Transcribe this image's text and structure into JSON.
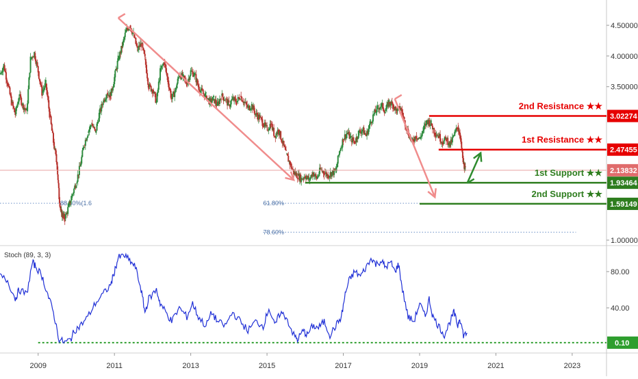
{
  "chart_data": {
    "type": "candlestick",
    "price_panel": {
      "y_ticks": [
        "4.50000",
        "4.00000",
        "3.50000",
        "1.00000"
      ],
      "y_tick_values": [
        4.5,
        4.0,
        3.5,
        1.0
      ],
      "x_years": [
        2008,
        2023.9
      ],
      "series_close": [
        [
          2008.0,
          3.7
        ],
        [
          2008.1,
          3.85
        ],
        [
          2008.2,
          3.55
        ],
        [
          2008.3,
          3.25
        ],
        [
          2008.4,
          3.05
        ],
        [
          2008.5,
          3.35
        ],
        [
          2008.6,
          3.2
        ],
        [
          2008.7,
          3.1
        ],
        [
          2008.8,
          3.95
        ],
        [
          2008.9,
          4.05
        ],
        [
          2009.0,
          3.75
        ],
        [
          2009.1,
          3.4
        ],
        [
          2009.2,
          3.55
        ],
        [
          2009.3,
          3.05
        ],
        [
          2009.4,
          2.6
        ],
        [
          2009.5,
          2.2
        ],
        [
          2009.55,
          1.7
        ],
        [
          2009.6,
          1.45
        ],
        [
          2009.65,
          1.4
        ],
        [
          2009.7,
          1.35
        ],
        [
          2009.8,
          1.55
        ],
        [
          2009.9,
          1.75
        ],
        [
          2010.0,
          1.95
        ],
        [
          2010.1,
          2.2
        ],
        [
          2010.2,
          2.55
        ],
        [
          2010.3,
          2.75
        ],
        [
          2010.4,
          2.9
        ],
        [
          2010.5,
          2.75
        ],
        [
          2010.6,
          3.05
        ],
        [
          2010.7,
          3.25
        ],
        [
          2010.8,
          3.4
        ],
        [
          2010.9,
          3.35
        ],
        [
          2011.0,
          3.65
        ],
        [
          2011.1,
          3.95
        ],
        [
          2011.2,
          4.15
        ],
        [
          2011.3,
          4.4
        ],
        [
          2011.4,
          4.5
        ],
        [
          2011.5,
          4.35
        ],
        [
          2011.6,
          4.1
        ],
        [
          2011.7,
          4.2
        ],
        [
          2011.8,
          3.95
        ],
        [
          2011.9,
          3.5
        ],
        [
          2012.0,
          3.45
        ],
        [
          2012.1,
          3.25
        ],
        [
          2012.2,
          3.75
        ],
        [
          2012.3,
          3.9
        ],
        [
          2012.4,
          3.6
        ],
        [
          2012.5,
          3.3
        ],
        [
          2012.6,
          3.45
        ],
        [
          2012.7,
          3.7
        ],
        [
          2012.8,
          3.65
        ],
        [
          2012.9,
          3.55
        ],
        [
          2013.0,
          3.75
        ],
        [
          2013.1,
          3.7
        ],
        [
          2013.2,
          3.5
        ],
        [
          2013.3,
          3.4
        ],
        [
          2013.4,
          3.35
        ],
        [
          2013.5,
          3.25
        ],
        [
          2013.6,
          3.3
        ],
        [
          2013.7,
          3.2
        ],
        [
          2013.8,
          3.35
        ],
        [
          2013.9,
          3.3
        ],
        [
          2014.0,
          3.2
        ],
        [
          2014.1,
          3.3
        ],
        [
          2014.2,
          3.25
        ],
        [
          2014.3,
          3.35
        ],
        [
          2014.4,
          3.25
        ],
        [
          2014.5,
          3.15
        ],
        [
          2014.6,
          3.2
        ],
        [
          2014.7,
          3.05
        ],
        [
          2014.8,
          3.0
        ],
        [
          2014.9,
          2.9
        ],
        [
          2015.0,
          2.8
        ],
        [
          2015.1,
          2.9
        ],
        [
          2015.2,
          2.7
        ],
        [
          2015.3,
          2.8
        ],
        [
          2015.4,
          2.6
        ],
        [
          2015.5,
          2.4
        ],
        [
          2015.6,
          2.25
        ],
        [
          2015.7,
          2.1
        ],
        [
          2015.8,
          2.05
        ],
        [
          2015.9,
          2.0
        ],
        [
          2016.0,
          2.05
        ],
        [
          2016.1,
          1.98
        ],
        [
          2016.2,
          2.1
        ],
        [
          2016.3,
          2.0
        ],
        [
          2016.4,
          2.15
        ],
        [
          2016.5,
          2.1
        ],
        [
          2016.6,
          2.05
        ],
        [
          2016.7,
          2.1
        ],
        [
          2016.8,
          2.12
        ],
        [
          2016.9,
          2.45
        ],
        [
          2017.0,
          2.65
        ],
        [
          2017.1,
          2.75
        ],
        [
          2017.2,
          2.65
        ],
        [
          2017.3,
          2.6
        ],
        [
          2017.4,
          2.75
        ],
        [
          2017.5,
          2.8
        ],
        [
          2017.6,
          2.7
        ],
        [
          2017.7,
          2.9
        ],
        [
          2017.8,
          3.05
        ],
        [
          2017.9,
          3.15
        ],
        [
          2018.0,
          3.2
        ],
        [
          2018.1,
          3.1
        ],
        [
          2018.2,
          3.25
        ],
        [
          2018.3,
          3.2
        ],
        [
          2018.4,
          3.1
        ],
        [
          2018.5,
          3.15
        ],
        [
          2018.6,
          2.95
        ],
        [
          2018.7,
          2.75
        ],
        [
          2018.8,
          2.6
        ],
        [
          2018.9,
          2.7
        ],
        [
          2019.0,
          2.65
        ],
        [
          2019.1,
          2.8
        ],
        [
          2019.2,
          2.95
        ],
        [
          2019.3,
          2.9
        ],
        [
          2019.4,
          2.75
        ],
        [
          2019.5,
          2.7
        ],
        [
          2019.6,
          2.6
        ],
        [
          2019.7,
          2.65
        ],
        [
          2019.8,
          2.55
        ],
        [
          2019.9,
          2.7
        ],
        [
          2020.0,
          2.85
        ],
        [
          2020.05,
          2.75
        ],
        [
          2020.1,
          2.5
        ],
        [
          2020.15,
          2.25
        ],
        [
          2020.2,
          2.14
        ]
      ],
      "levels": [
        {
          "label": "2nd Resistance ★★",
          "value": 3.02274,
          "tag": "3.02274",
          "color": "#e60000",
          "from": 2019.25
        },
        {
          "label": "1st Resistance ★★",
          "value": 2.47455,
          "tag": "2.47455",
          "color": "#e60000",
          "from": 2019.5
        },
        {
          "label": "1st Support ★★",
          "value": 1.93464,
          "tag": "1.93464",
          "color": "#2e7d1e",
          "from": 2016.0
        },
        {
          "label": "2nd Support ★★",
          "value": 1.59149,
          "tag": "1.59149",
          "color": "#2e7d1e",
          "from": 2019.0
        }
      ],
      "current_price": {
        "value": 2.13832,
        "tag": "2.13832",
        "color": "#e06c6c"
      },
      "fib_lines": [
        {
          "label": "88.60%(1.6",
          "value": 1.6,
          "from": 2008.0,
          "to": 2009.8
        },
        {
          "label": "61.80%",
          "value": 1.6,
          "from": 2014.9,
          "to": 2019.0
        },
        {
          "label": "78.60%",
          "value": 1.13,
          "from": 2014.9,
          "to": 2023.1
        }
      ],
      "arrows": [
        {
          "from": [
            2011.1,
            4.62
          ],
          "to": [
            2015.7,
            1.98
          ],
          "color": "#f08c8c"
        },
        {
          "from": [
            2018.35,
            3.3
          ],
          "to": [
            2019.4,
            1.7
          ],
          "color": "#f08c8c"
        },
        {
          "from": [
            2020.25,
            1.93
          ],
          "to": [
            2020.6,
            2.42
          ],
          "color": "#2e8b2e"
        }
      ]
    },
    "stoch_panel": {
      "title": "Stoch (89, 3, 3)",
      "y_ticks": [
        "80.00",
        "40.00"
      ],
      "y_tick_values": [
        80,
        40
      ],
      "level_line": {
        "value": 0.1,
        "tag": "0.10",
        "color": "#2e9e2e"
      },
      "series_k": [
        [
          2008.0,
          75
        ],
        [
          2008.2,
          70
        ],
        [
          2008.4,
          50
        ],
        [
          2008.5,
          60
        ],
        [
          2008.7,
          55
        ],
        [
          2008.85,
          90
        ],
        [
          2008.95,
          85
        ],
        [
          2009.1,
          75
        ],
        [
          2009.25,
          55
        ],
        [
          2009.4,
          35
        ],
        [
          2009.55,
          5
        ],
        [
          2009.7,
          2
        ],
        [
          2009.85,
          5
        ],
        [
          2009.95,
          15
        ],
        [
          2010.1,
          20
        ],
        [
          2010.3,
          30
        ],
        [
          2010.5,
          45
        ],
        [
          2010.7,
          55
        ],
        [
          2010.9,
          65
        ],
        [
          2011.0,
          80
        ],
        [
          2011.1,
          95
        ],
        [
          2011.25,
          98
        ],
        [
          2011.4,
          92
        ],
        [
          2011.55,
          85
        ],
        [
          2011.7,
          60
        ],
        [
          2011.8,
          35
        ],
        [
          2011.9,
          50
        ],
        [
          2012.1,
          60
        ],
        [
          2012.2,
          45
        ],
        [
          2012.35,
          35
        ],
        [
          2012.5,
          25
        ],
        [
          2012.7,
          40
        ],
        [
          2012.9,
          30
        ],
        [
          2013.05,
          45
        ],
        [
          2013.2,
          30
        ],
        [
          2013.4,
          20
        ],
        [
          2013.55,
          35
        ],
        [
          2013.7,
          25
        ],
        [
          2013.9,
          20
        ],
        [
          2014.1,
          35
        ],
        [
          2014.3,
          25
        ],
        [
          2014.5,
          15
        ],
        [
          2014.7,
          25
        ],
        [
          2014.9,
          20
        ],
        [
          2015.05,
          40
        ],
        [
          2015.2,
          20
        ],
        [
          2015.35,
          35
        ],
        [
          2015.5,
          30
        ],
        [
          2015.7,
          10
        ],
        [
          2015.8,
          5
        ],
        [
          2015.95,
          15
        ],
        [
          2016.05,
          10
        ],
        [
          2016.2,
          20
        ],
        [
          2016.35,
          18
        ],
        [
          2016.5,
          25
        ],
        [
          2016.65,
          10
        ],
        [
          2016.8,
          20
        ],
        [
          2016.95,
          30
        ],
        [
          2017.05,
          55
        ],
        [
          2017.15,
          70
        ],
        [
          2017.3,
          80
        ],
        [
          2017.45,
          75
        ],
        [
          2017.6,
          85
        ],
        [
          2017.75,
          95
        ],
        [
          2017.85,
          88
        ],
        [
          2018.0,
          92
        ],
        [
          2018.1,
          85
        ],
        [
          2018.25,
          90
        ],
        [
          2018.35,
          80
        ],
        [
          2018.45,
          88
        ],
        [
          2018.55,
          60
        ],
        [
          2018.7,
          30
        ],
        [
          2018.85,
          25
        ],
        [
          2019.0,
          45
        ],
        [
          2019.15,
          30
        ],
        [
          2019.25,
          50
        ],
        [
          2019.35,
          30
        ],
        [
          2019.5,
          20
        ],
        [
          2019.65,
          10
        ],
        [
          2019.8,
          25
        ],
        [
          2019.9,
          35
        ],
        [
          2020.0,
          20
        ],
        [
          2020.05,
          30
        ],
        [
          2020.15,
          10
        ],
        [
          2020.25,
          12
        ]
      ]
    },
    "x_axis": {
      "labels": [
        "2009",
        "2011",
        "2013",
        "2015",
        "2017",
        "2019",
        "2021",
        "2023"
      ],
      "label_years": [
        2009,
        2011,
        2013,
        2015,
        2017,
        2019,
        2021,
        2023
      ]
    }
  }
}
